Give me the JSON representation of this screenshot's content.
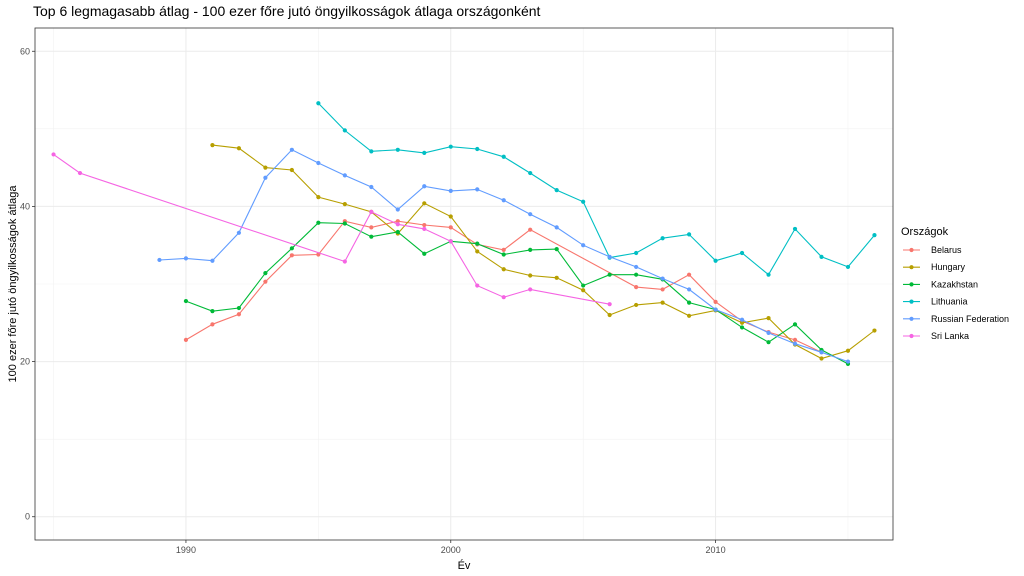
{
  "chart_data": {
    "type": "line",
    "title": "Top 6 legmagasabb átlag - 100 ezer főre jutó öngyilkosságok átlaga országonként",
    "xlabel": "Év",
    "ylabel": "100 ezer főre jutó öngyilkosságok átlaga",
    "xlim": [
      1984.3,
      2016.7
    ],
    "ylim": [
      -3,
      63
    ],
    "x_ticks": [
      1990,
      2000,
      2010
    ],
    "y_ticks": [
      0,
      20,
      40,
      60
    ],
    "grid": true,
    "legend": {
      "title": "Országok",
      "position": "right"
    },
    "series": [
      {
        "name": "Belarus",
        "color": "#F8766D",
        "x": [
          1990,
          1991,
          1992,
          1993,
          1994,
          1995,
          1996,
          1997,
          1998,
          1999,
          2000,
          2001,
          2002,
          2003,
          2007,
          2008,
          2009,
          2010,
          2011,
          2012,
          2013,
          2014
        ],
        "y": [
          22.8,
          24.8,
          26.1,
          30.3,
          33.7,
          33.8,
          38.1,
          37.3,
          38.1,
          37.6,
          37.3,
          35.1,
          34.4,
          37.0,
          29.6,
          29.3,
          31.2,
          27.7,
          25.2,
          23.8,
          22.8,
          21.2
        ]
      },
      {
        "name": "Hungary",
        "color": "#B79F00",
        "x": [
          1991,
          1992,
          1993,
          1994,
          1995,
          1996,
          1997,
          1998,
          1999,
          2000,
          2001,
          2002,
          2003,
          2004,
          2005,
          2006,
          2007,
          2008,
          2009,
          2010,
          2011,
          2012,
          2013,
          2014,
          2015,
          2016
        ],
        "y": [
          47.9,
          47.5,
          45.0,
          44.7,
          41.2,
          40.3,
          39.3,
          36.5,
          40.4,
          38.7,
          34.2,
          31.9,
          31.1,
          30.8,
          29.2,
          26.0,
          27.3,
          27.6,
          25.9,
          26.6,
          25.0,
          25.6,
          22.2,
          20.4,
          21.4,
          24.0
        ]
      },
      {
        "name": "Kazakhstan",
        "color": "#00BA38",
        "x": [
          1990,
          1991,
          1992,
          1993,
          1994,
          1995,
          1996,
          1997,
          1998,
          1999,
          2000,
          2001,
          2002,
          2003,
          2004,
          2005,
          2006,
          2007,
          2008,
          2009,
          2010,
          2011,
          2012,
          2013,
          2014,
          2015
        ],
        "y": [
          27.8,
          26.5,
          26.9,
          31.4,
          34.6,
          37.9,
          37.8,
          36.1,
          36.7,
          33.9,
          35.5,
          35.2,
          33.8,
          34.4,
          34.5,
          29.8,
          31.2,
          31.2,
          30.6,
          27.6,
          26.7,
          24.4,
          22.5,
          24.8,
          21.5,
          19.7
        ]
      },
      {
        "name": "Lithuania",
        "color": "#00BFC4",
        "x": [
          1995,
          1996,
          1997,
          1998,
          1999,
          2000,
          2001,
          2002,
          2003,
          2004,
          2005,
          2006,
          2007,
          2008,
          2009,
          2010,
          2011,
          2012,
          2013,
          2014,
          2015,
          2016
        ],
        "y": [
          53.3,
          49.8,
          47.1,
          47.3,
          46.9,
          47.7,
          47.4,
          46.4,
          44.3,
          42.1,
          40.6,
          33.4,
          34.0,
          35.9,
          36.4,
          33.0,
          34.0,
          31.2,
          37.1,
          33.5,
          32.2,
          36.3
        ]
      },
      {
        "name": "Russian Federation",
        "color": "#619CFF",
        "x": [
          1989,
          1990,
          1991,
          1992,
          1993,
          1994,
          1995,
          1996,
          1997,
          1998,
          1999,
          2000,
          2001,
          2002,
          2003,
          2004,
          2005,
          2006,
          2007,
          2008,
          2009,
          2010,
          2011,
          2012,
          2013,
          2014,
          2015
        ],
        "y": [
          33.1,
          33.3,
          33.0,
          36.6,
          43.7,
          47.3,
          45.6,
          44.0,
          42.5,
          39.6,
          42.6,
          42.0,
          42.2,
          40.8,
          39.0,
          37.3,
          35.0,
          33.5,
          32.2,
          30.7,
          29.3,
          26.7,
          25.4,
          23.7,
          22.3,
          21.2,
          20.0
        ]
      },
      {
        "name": "Sri Lanka",
        "color": "#F564E3",
        "x": [
          1985,
          1986,
          1996,
          1997,
          1998,
          1999,
          2000,
          2001,
          2002,
          2003,
          2006
        ],
        "y": [
          46.7,
          44.3,
          32.9,
          39.3,
          37.7,
          37.1,
          35.5,
          29.8,
          28.3,
          29.3,
          27.4
        ]
      }
    ]
  }
}
